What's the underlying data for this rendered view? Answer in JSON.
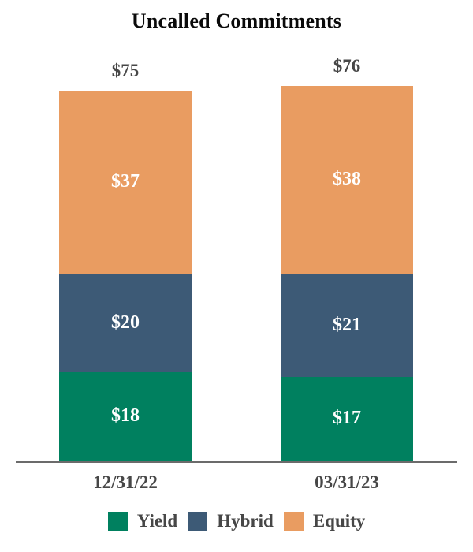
{
  "chart_data": {
    "type": "bar",
    "stacked": true,
    "title": "Uncalled Commitments",
    "categories": [
      "12/31/22",
      "03/31/23"
    ],
    "series": [
      {
        "name": "Yield",
        "color": "#00805F",
        "values": [
          18,
          17
        ]
      },
      {
        "name": "Hybrid",
        "color": "#3D5A76",
        "values": [
          20,
          21
        ]
      },
      {
        "name": "Equity",
        "color": "#E99C61",
        "values": [
          37,
          38
        ]
      }
    ],
    "totals": [
      75,
      76
    ],
    "totals_display": [
      "$75",
      "$76"
    ],
    "segment_labels": [
      [
        "$18",
        "$20",
        "$37"
      ],
      [
        "$17",
        "$21",
        "$38"
      ]
    ],
    "value_prefix": "$",
    "legend_position": "bottom",
    "grid": false,
    "ylim": [
      0,
      80
    ],
    "colors": {
      "axis_line": "#6B6B6B",
      "label_text": "#474747",
      "title_text": "#0A0A0A",
      "segment_text": "#FFFFFF",
      "background": "#FFFFFF"
    }
  }
}
